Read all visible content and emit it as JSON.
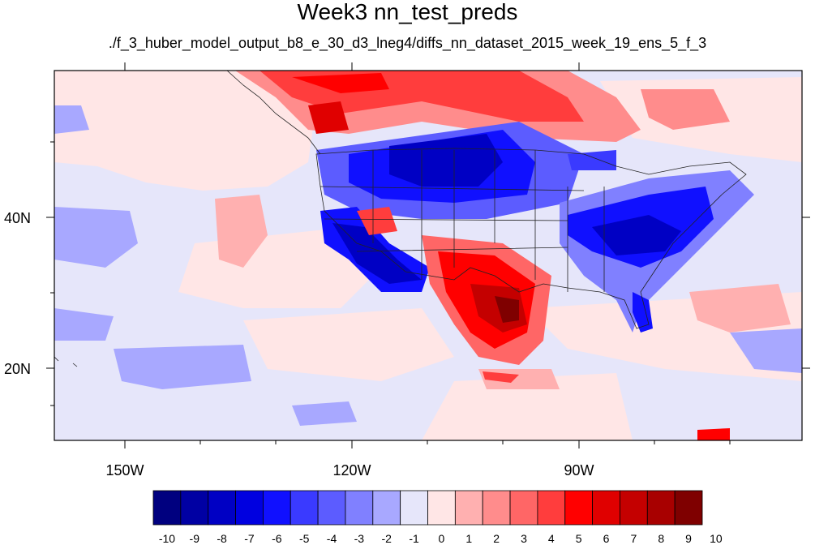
{
  "title": "Week3 nn_test_preds",
  "subtitle": "./f_3_huber_model_output_b8_e_30_d3_lneg4/diffs_nn_dataset_2015_week_19_ens_5_f_3",
  "axes": {
    "x_labels": [
      "150W",
      "120W",
      "90W"
    ],
    "y_labels": [
      "40N",
      "20N"
    ]
  },
  "colorbar": {
    "labels": [
      "-10",
      "-9",
      "-8",
      "-7",
      "-6",
      "-5",
      "-4",
      "-3",
      "-2",
      "-1",
      "0",
      "1",
      "2",
      "3",
      "4",
      "5",
      "6",
      "7",
      "8",
      "9",
      "10"
    ],
    "colors": [
      "#00007f",
      "#0000a3",
      "#0000c4",
      "#0000e0",
      "#1010ff",
      "#3a3aff",
      "#5c5cff",
      "#8080ff",
      "#a8a8ff",
      "#e6e6fa",
      "#ffe6e6",
      "#ffb0b0",
      "#ff8c8c",
      "#ff6666",
      "#ff3d3d",
      "#ff0000",
      "#e00000",
      "#c40000",
      "#a80000",
      "#7f0000"
    ]
  },
  "map": {
    "background_color": "#e6e6fa",
    "features": [
      {
        "name": "pacific-anomaly-positive",
        "color": "#ffe6e6"
      },
      {
        "name": "canada-positive-band",
        "color": "#ff6666"
      },
      {
        "name": "northern-plains-negative",
        "color": "#1010ff"
      },
      {
        "name": "southwest-negative",
        "color": "#0000c4"
      },
      {
        "name": "texas-positive",
        "color": "#e00000"
      },
      {
        "name": "southeast-negative",
        "color": "#3a3aff"
      },
      {
        "name": "pacific-west-negative",
        "color": "#a8a8ff"
      }
    ]
  }
}
